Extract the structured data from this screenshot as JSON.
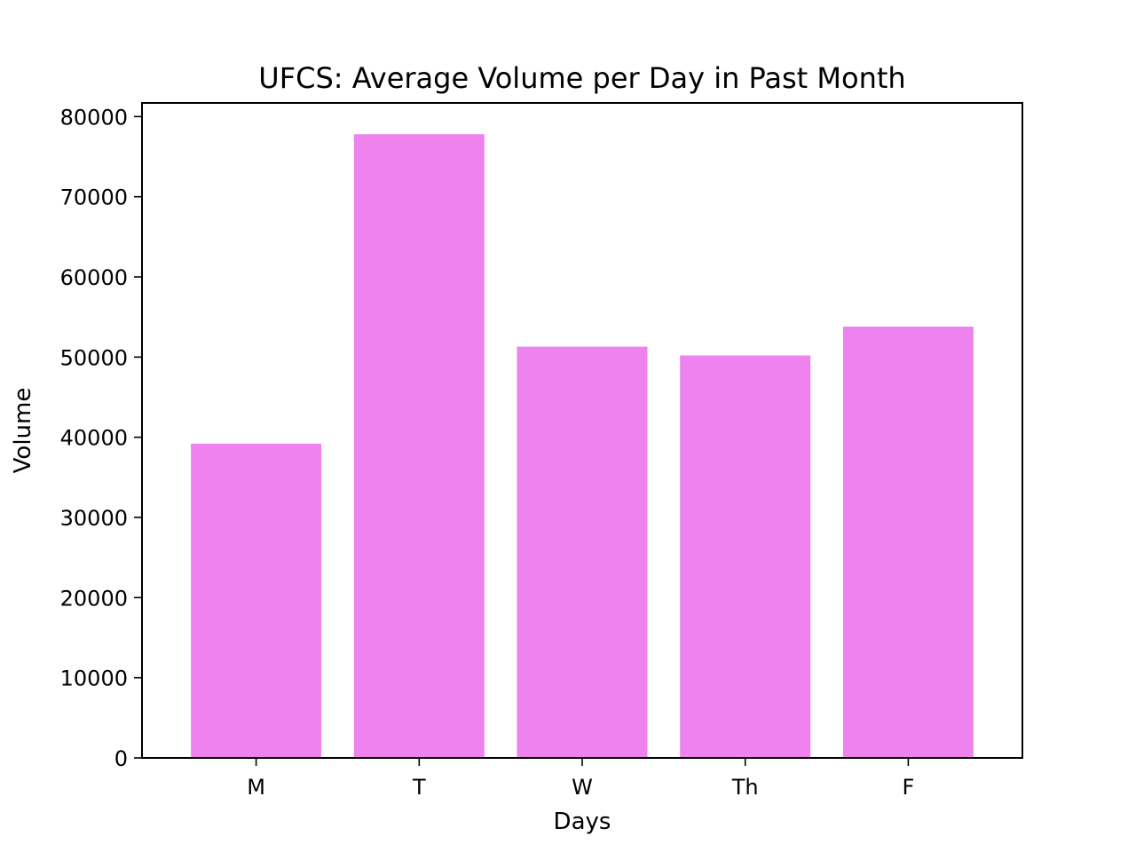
{
  "chart_data": {
    "type": "bar",
    "title": "UFCS: Average Volume per Day in Past Month",
    "xlabel": "Days",
    "ylabel": "Volume",
    "categories": [
      "M",
      "T",
      "W",
      "Th",
      "F"
    ],
    "values": [
      39200,
      77800,
      51300,
      50200,
      53800
    ],
    "ylim": [
      0,
      81700
    ],
    "yticks": [
      0,
      10000,
      20000,
      30000,
      40000,
      50000,
      60000,
      70000,
      80000
    ],
    "bar_color": "#ee82ee",
    "grid": false,
    "legend": "none"
  }
}
